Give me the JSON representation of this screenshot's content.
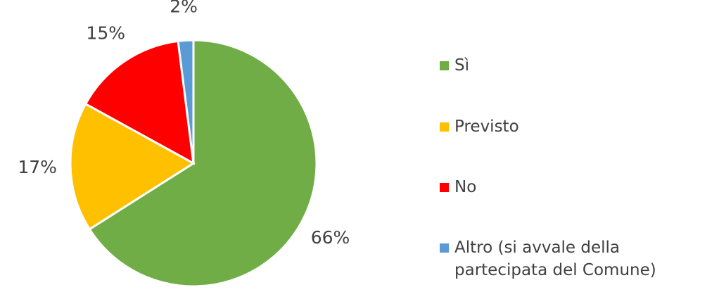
{
  "chart_data": {
    "type": "pie",
    "categories": [
      "Sì",
      "Previsto",
      "No",
      "Altro (si avvale della partecipata del Comune)"
    ],
    "values": [
      66,
      17,
      15,
      2
    ],
    "value_labels": [
      "66%",
      "17%",
      "15%",
      "2%"
    ],
    "colors": [
      "#70ad47",
      "#ffc000",
      "#ff0000",
      "#5b9bd5"
    ],
    "legend": "right"
  }
}
